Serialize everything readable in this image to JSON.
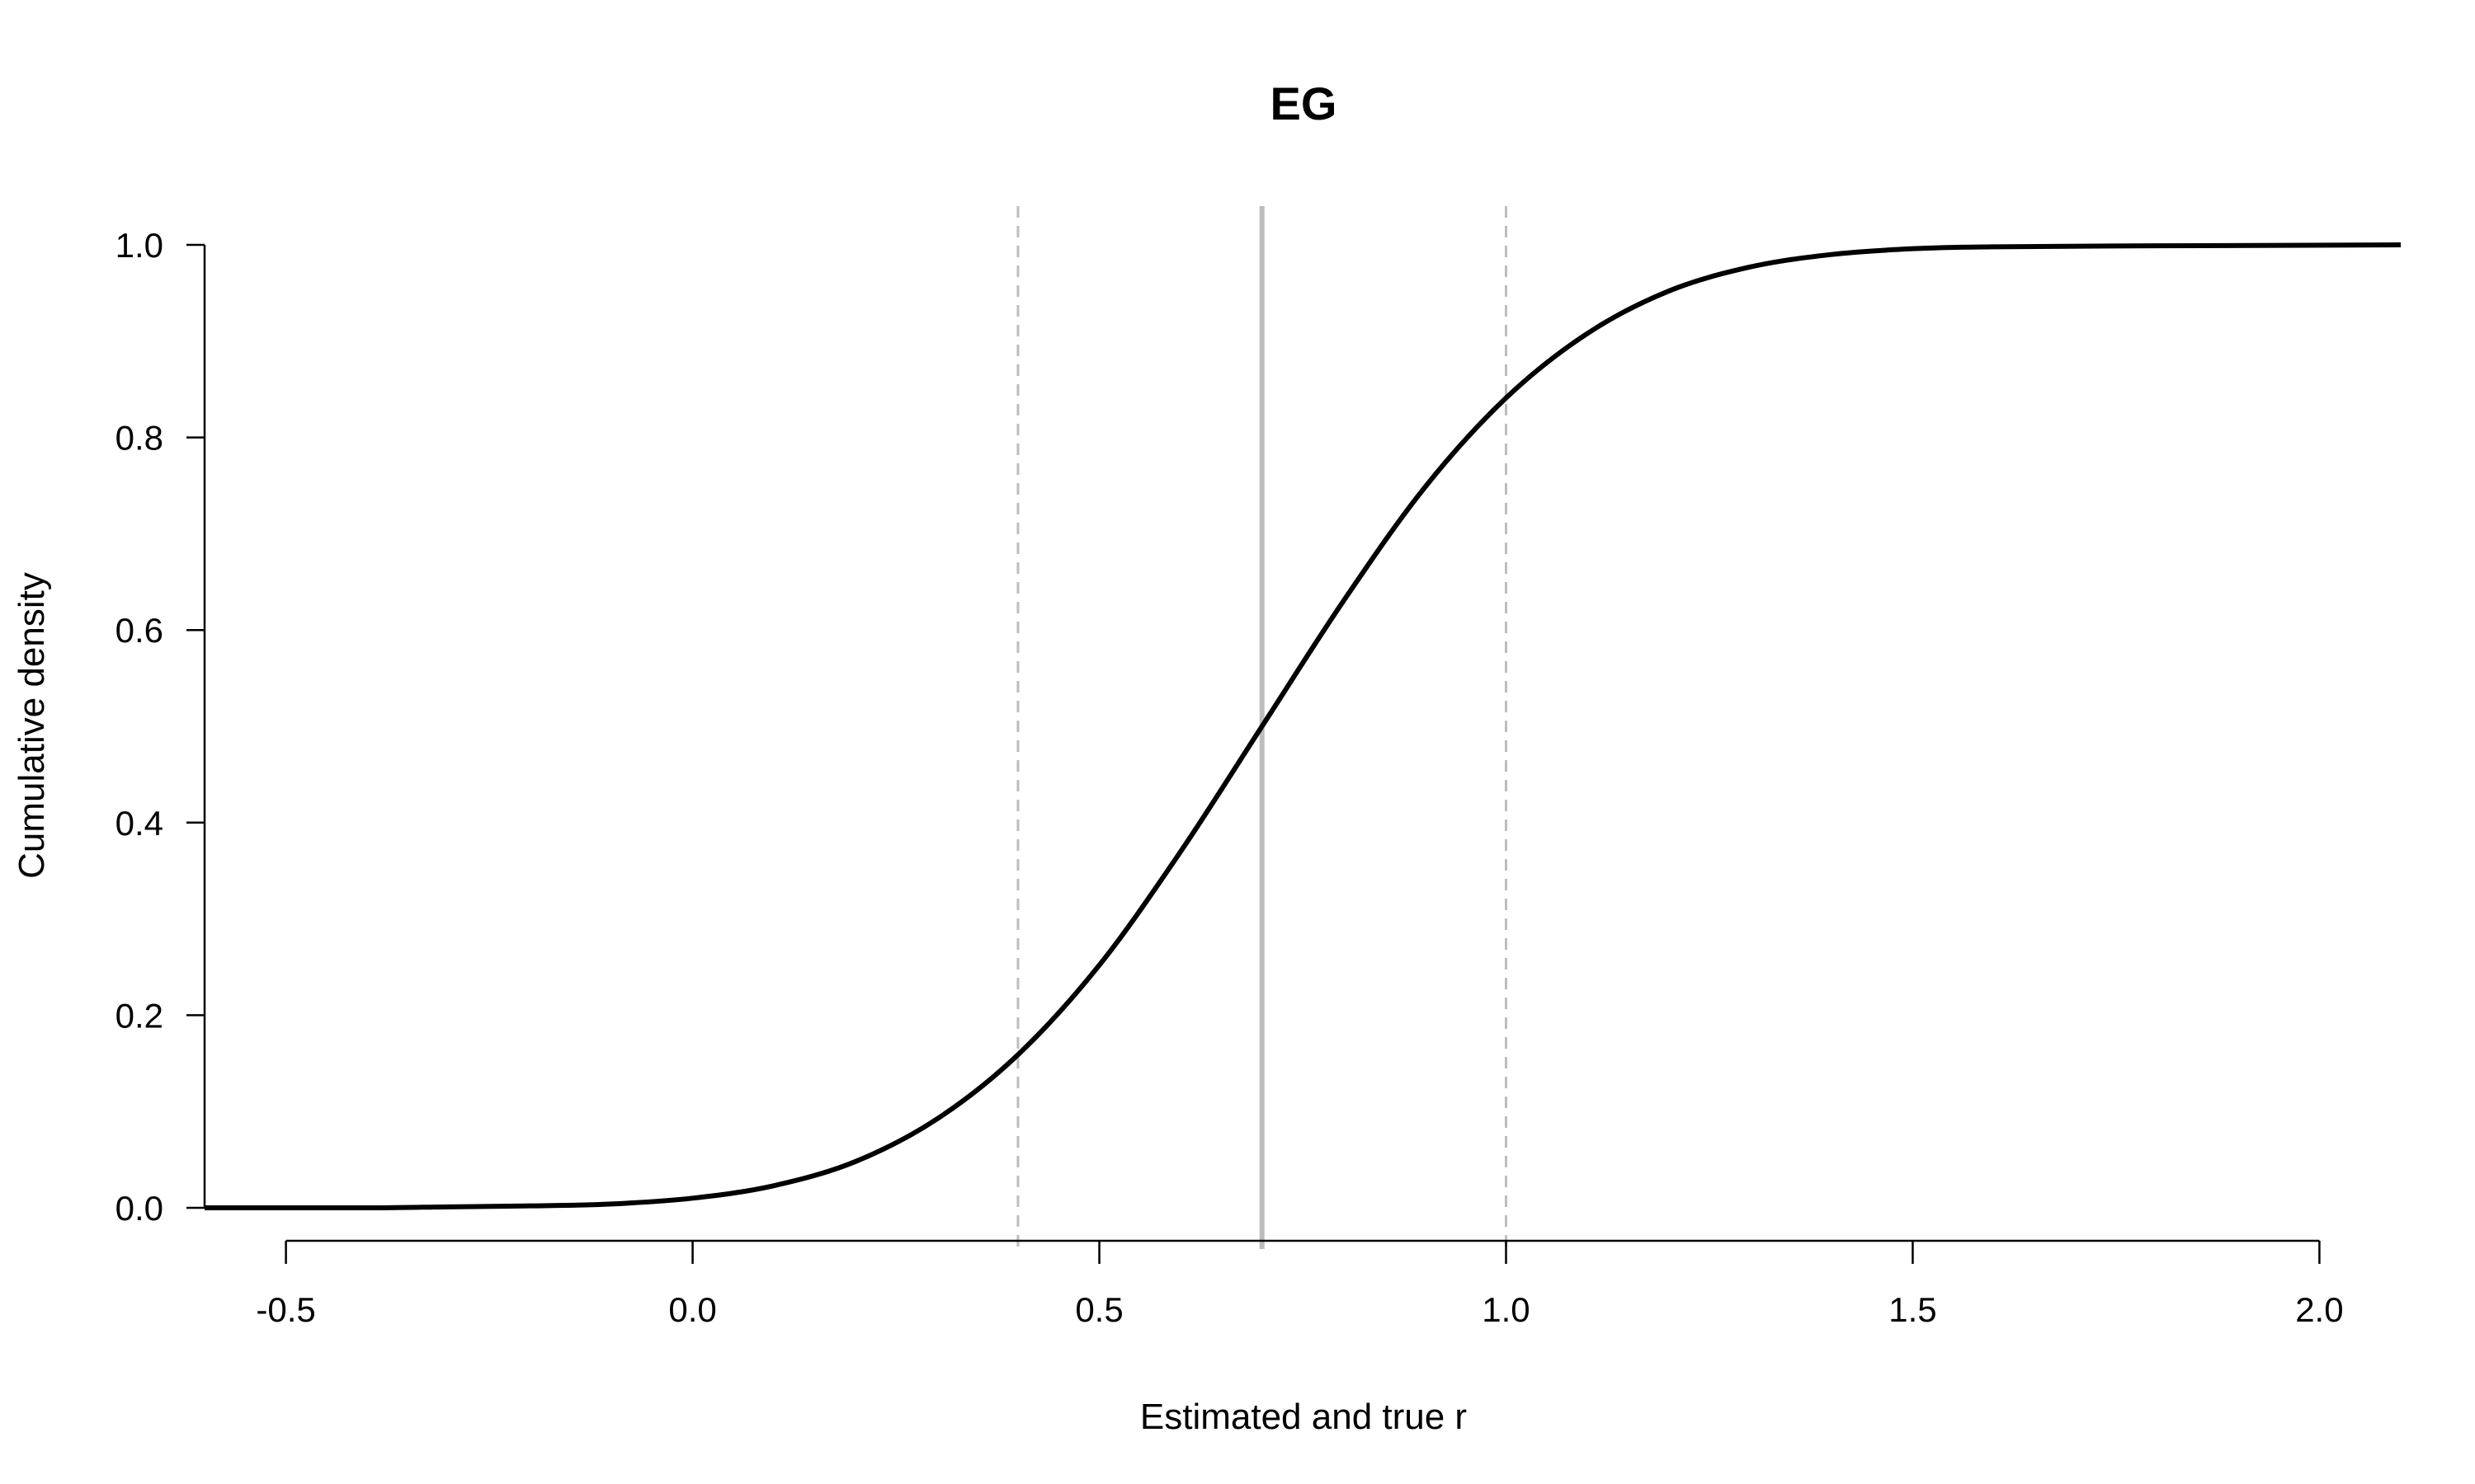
{
  "chart_data": {
    "type": "line",
    "title": "EG",
    "xlabel": "Estimated and true r",
    "ylabel": "Cumulative density",
    "xlim": [
      -0.6,
      2.1
    ],
    "ylim": [
      0.0,
      1.0
    ],
    "x_ticks": [
      -0.5,
      0.0,
      0.5,
      1.0,
      1.5,
      2.0
    ],
    "x_tick_labels": [
      "-0.5",
      "0.0",
      "0.5",
      "1.0",
      "1.5",
      "2.0"
    ],
    "y_ticks": [
      0.0,
      0.2,
      0.4,
      0.6,
      0.8,
      1.0
    ],
    "y_tick_labels": [
      "0.0",
      "0.2",
      "0.4",
      "0.6",
      "0.8",
      "1.0"
    ],
    "grid": false,
    "series": [
      {
        "role": "estimated-cdf",
        "style": "solid",
        "color": "#000000",
        "x": [
          -0.6,
          -0.5,
          -0.4,
          -0.3,
          -0.2,
          -0.1,
          0.0,
          0.1,
          0.2,
          0.3,
          0.4,
          0.5,
          0.6,
          0.7,
          0.8,
          0.9,
          1.0,
          1.1,
          1.2,
          1.3,
          1.4,
          1.5,
          1.6,
          1.8,
          2.1
        ],
        "y": [
          0.0,
          0.0,
          0.0,
          0.001,
          0.002,
          0.004,
          0.01,
          0.023,
          0.048,
          0.092,
          0.159,
          0.252,
          0.37,
          0.5,
          0.63,
          0.748,
          0.841,
          0.908,
          0.952,
          0.977,
          0.99,
          0.996,
          0.998,
          0.999,
          1.0
        ]
      },
      {
        "role": "true-cdf",
        "style": "dashed",
        "color": "#000000",
        "x": [
          -0.6,
          -0.5,
          -0.4,
          -0.3,
          -0.2,
          -0.1,
          0.0,
          0.1,
          0.2,
          0.3,
          0.4,
          0.5,
          0.6,
          0.7,
          0.8,
          0.9,
          1.0,
          1.1,
          1.2,
          1.3,
          1.4,
          1.5,
          1.6,
          1.8,
          2.1
        ],
        "y": [
          0.0,
          0.0,
          0.0,
          0.001,
          0.002,
          0.004,
          0.01,
          0.023,
          0.048,
          0.092,
          0.159,
          0.252,
          0.37,
          0.5,
          0.63,
          0.748,
          0.841,
          0.908,
          0.952,
          0.977,
          0.99,
          0.996,
          0.998,
          0.999,
          1.0
        ]
      }
    ],
    "vlines": [
      {
        "x": 0.4,
        "style": "dashed",
        "color": "#bdbdbd"
      },
      {
        "x": 0.7,
        "style": "solid",
        "color": "#bdbdbd"
      },
      {
        "x": 1.0,
        "style": "dashed",
        "color": "#bdbdbd"
      }
    ]
  }
}
